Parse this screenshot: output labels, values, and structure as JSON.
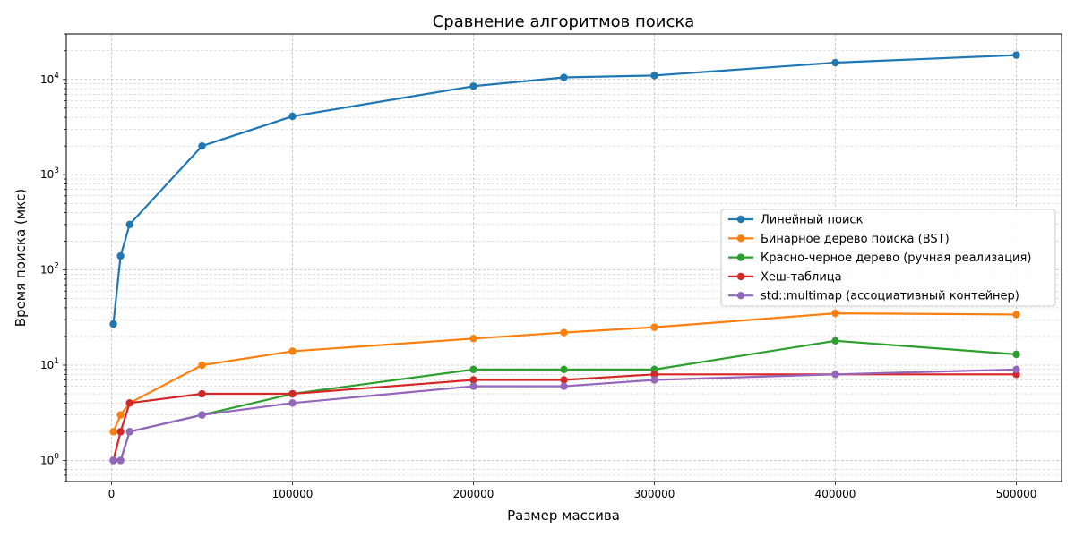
{
  "chart_data": {
    "type": "line",
    "title": "Сравнение алгоритмов поиска",
    "xlabel": "Размер массива",
    "ylabel": "Время поиска (мкс)",
    "yscale": "log",
    "xlim": [
      -25000,
      525000
    ],
    "ylim": [
      0.6,
      30000
    ],
    "grid": true,
    "legend_position": "center-right",
    "x_ticks": [
      0,
      100000,
      200000,
      300000,
      400000,
      500000
    ],
    "x_tick_labels": [
      "0",
      "100000",
      "200000",
      "300000",
      "400000",
      "500000"
    ],
    "y_ticks": [
      1,
      10,
      100,
      1000,
      10000
    ],
    "y_tick_labels": [
      {
        "base": "10",
        "exp": "0"
      },
      {
        "base": "10",
        "exp": "1"
      },
      {
        "base": "10",
        "exp": "2"
      },
      {
        "base": "10",
        "exp": "3"
      },
      {
        "base": "10",
        "exp": "4"
      }
    ],
    "x": [
      1000,
      5000,
      10000,
      50000,
      100000,
      200000,
      250000,
      300000,
      400000,
      500000
    ],
    "series": [
      {
        "name": "Линейный поиск",
        "color": "#1f77b4",
        "values": [
          27,
          140,
          300,
          2000,
          4100,
          8500,
          10500,
          11000,
          15000,
          18000
        ]
      },
      {
        "name": "Бинарное дерево поиска (BST)",
        "color": "#ff7f0e",
        "values": [
          2,
          3,
          4,
          10,
          14,
          19,
          22,
          25,
          35,
          34
        ]
      },
      {
        "name": "Красно-черное дерево (ручная реализация)",
        "color": "#2ca02c",
        "values": [
          1,
          1,
          2,
          3,
          5,
          9,
          9,
          9,
          18,
          13
        ]
      },
      {
        "name": "Хеш-таблица",
        "color": "#d62728",
        "values": [
          1,
          2,
          4,
          5,
          5,
          7,
          7,
          8,
          8,
          8
        ]
      },
      {
        "name": "std::multimap (ассоциативный контейнер)",
        "color": "#9467bd",
        "values": [
          1,
          1,
          2,
          3,
          4,
          6,
          6,
          7,
          8,
          9
        ]
      }
    ]
  }
}
